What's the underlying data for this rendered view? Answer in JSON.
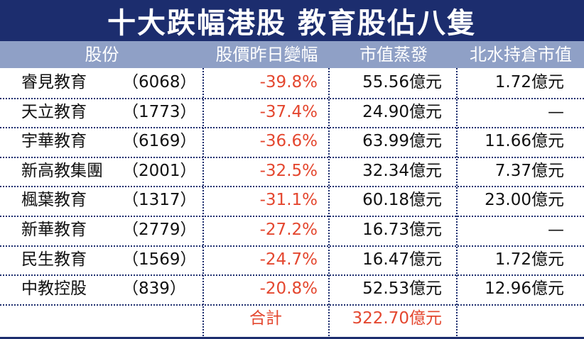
{
  "title": "十大跌幅港股 教育股佔八隻",
  "header": {
    "stock": "股份",
    "change": "股價昨日變幅",
    "cap_loss": "市值蒸發",
    "northbound": "北水持倉市值"
  },
  "rows": [
    {
      "name": "睿見教育",
      "code": "（6068）",
      "change": "-39.8%",
      "cap_loss": "55.56億元",
      "northbound": "1.72億元"
    },
    {
      "name": "天立教育",
      "code": "（1773）",
      "change": "-37.4%",
      "cap_loss": "24.90億元",
      "northbound": "—"
    },
    {
      "name": "宇華教育",
      "code": "（6169）",
      "change": "-36.6%",
      "cap_loss": "63.99億元",
      "northbound": "11.66億元"
    },
    {
      "name": "新高教集團",
      "code": "（2001）",
      "change": "-32.5%",
      "cap_loss": "32.34億元",
      "northbound": "7.37億元"
    },
    {
      "name": "楓葉教育",
      "code": "（1317）",
      "change": "-31.1%",
      "cap_loss": "60.18億元",
      "northbound": "23.00億元"
    },
    {
      "name": "新華教育",
      "code": "（2779）",
      "change": "-27.2%",
      "cap_loss": "16.73億元",
      "northbound": "—"
    },
    {
      "name": "民生教育",
      "code": "（1569）",
      "change": "-24.7%",
      "cap_loss": "16.47億元",
      "northbound": "1.72億元"
    },
    {
      "name": "中教控股",
      "code": "（839）",
      "change": "-20.8%",
      "cap_loss": "52.53億元",
      "northbound": "12.96億元"
    }
  ],
  "total": {
    "label": "合計",
    "cap_loss": "322.70億元"
  },
  "colors": {
    "title_bg": "#1c2d6e",
    "header_bg": "#8fa0c6",
    "accent_red": "#e4472f"
  }
}
